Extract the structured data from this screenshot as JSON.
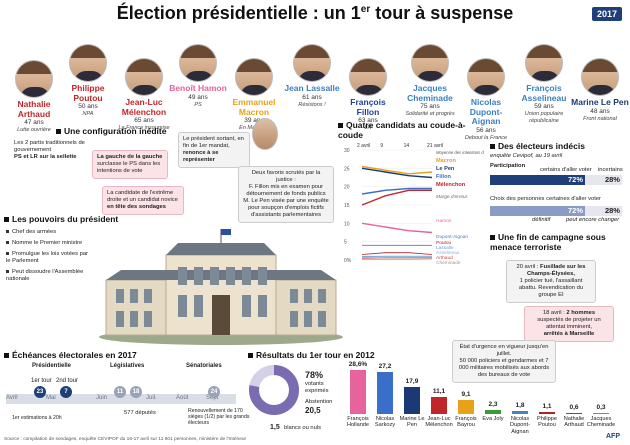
{
  "header": {
    "title_main": "Élection présidentielle : un 1",
    "title_sup": "er",
    "title_end": " tour à suspense",
    "logo": "2017"
  },
  "candidates": [
    {
      "name": "Nathalie Arthaud",
      "age": "47 ans",
      "party": "Lutte ouvrière",
      "color": "#c0262a"
    },
    {
      "name": "Philippe Poutou",
      "age": "50 ans",
      "party": "NPA",
      "color": "#c0262a"
    },
    {
      "name": "Jean-Luc Mélenchon",
      "age": "65 ans",
      "party": "La France insoumise",
      "color": "#c0262a"
    },
    {
      "name": "Benoît Hamon",
      "age": "49 ans",
      "party": "PS",
      "color": "#e6639b"
    },
    {
      "name": "Emmanuel Macron",
      "age": "39 ans",
      "party": "En Marche !",
      "color": "#e8a21a"
    },
    {
      "name": "Jean Lassalle",
      "age": "61 ans",
      "party": "Résistons !",
      "color": "#3a7fc1"
    },
    {
      "name": "François Fillon",
      "age": "63 ans",
      "party": "LR",
      "color": "#1f3f9a"
    },
    {
      "name": "Jacques Cheminade",
      "age": "75 ans",
      "party": "Solidarité et progrès",
      "color": "#3a7fc1"
    },
    {
      "name": "Nicolas Dupont-Aignan",
      "age": "56 ans",
      "party": "Debout la France",
      "color": "#3a7fc1"
    },
    {
      "name": "François Asselineau",
      "age": "59 ans",
      "party": "Union populaire républicaine",
      "color": "#3a7fc1"
    },
    {
      "name": "Marine Le Pen",
      "age": "48 ans",
      "party": "Front national",
      "color": "#1b3a75"
    }
  ],
  "config": {
    "heading": "Une configuration inédite",
    "note_left": "Les 2 partis traditionnels de gouvernement",
    "note_left_bold": "PS et LR sur la sellette",
    "note_ps": "La gauche de la gauche",
    "note_ps2": "surclasse le PS dans les intentions de vote",
    "note_fn": "La candidate de l'extrême droite et un candidat novice",
    "note_fn_bold": "en tête des sondages",
    "note_pres": "Le président sortant, en fin de 1er mandat,",
    "note_pres_bold": "renonce à se représenter",
    "note_justice_title": "Deux favoris scrutés par la justice :",
    "note_justice_1": "F. Fillon mis en examen pour détournement de fonds publics",
    "note_justice_2": "M. Le Pen visée par une enquête pour soupçon d'emplois fictifs d'assistants parlementaires"
  },
  "powers": {
    "heading": "Les pouvoirs du président",
    "items": [
      "Chef des armées",
      "Nomme le Premier ministre",
      "Promulgue les lois votées par le Parlement",
      "Peut dissoudre l'Assemblée nationale"
    ]
  },
  "race": {
    "heading": "Quatre candidats au coude-à-coude",
    "dates": [
      "2 avril",
      "9",
      "14",
      "21 avril"
    ],
    "legend_note": "Moyenne des intentions de vote",
    "y_ticks": [
      "30",
      "25",
      "20",
      "15",
      "10",
      "5",
      "0%"
    ],
    "series_labels": [
      "Macron",
      "Le Pen",
      "Fillon",
      "Mélenchon",
      "Marge d'erreur",
      "Hamon",
      "Dupont-Aignan",
      "Poutou",
      "Lassalle",
      "Asselineau",
      "Arthaud",
      "Cheminade"
    ]
  },
  "chart_data": {
    "type": "line",
    "x": [
      "2 avril",
      "9",
      "14",
      "21 avril"
    ],
    "ylim": [
      0,
      30
    ],
    "series": [
      {
        "name": "Macron",
        "values": [
          25.5,
          24.5,
          23.5,
          24
        ]
      },
      {
        "name": "Le Pen",
        "values": [
          25,
          24,
          23,
          22.5
        ]
      },
      {
        "name": "Fillon",
        "values": [
          18,
          19,
          19.5,
          19.5
        ]
      },
      {
        "name": "Mélenchon",
        "values": [
          15,
          17.5,
          19,
          19
        ]
      },
      {
        "name": "Hamon",
        "values": [
          10,
          9,
          8,
          7.5
        ]
      },
      {
        "name": "Dupont-Aignan",
        "values": [
          4,
          4,
          4,
          4
        ]
      },
      {
        "name": "Poutou",
        "values": [
          1.5,
          2,
          2,
          1.5
        ]
      },
      {
        "name": "Lassalle",
        "values": [
          1,
          1,
          1,
          1
        ]
      },
      {
        "name": "Asselineau",
        "values": [
          0.8,
          1,
          1,
          1
        ]
      },
      {
        "name": "Arthaud",
        "values": [
          0.5,
          0.6,
          0.6,
          0.6
        ]
      },
      {
        "name": "Cheminade",
        "values": [
          0.2,
          0.2,
          0.2,
          0.3
        ]
      }
    ],
    "colors": [
      "#e8a21a",
      "#1b3a75",
      "#3a6fc9",
      "#c0262a",
      "#e6639b",
      "#4f7dc0",
      "#b22222",
      "#6fa0d8",
      "#8bb2dd",
      "#d24a4a",
      "#999999"
    ]
  },
  "undecided": {
    "heading": "Des électeurs indécis",
    "sub": "enquête Cevipof, au 19 avril",
    "participation": "Participation",
    "sure_label": "certains d'aller voter",
    "unsure_label": "incertains",
    "sure_val": "72%",
    "unsure_val": "28%",
    "choice_label": "Choix des personnes certaines d'aller voter",
    "defin_val": "72%",
    "change_val": "28%",
    "defin_label": "définitif",
    "change_label": "peut encore changer"
  },
  "terror": {
    "heading": "Une fin de campagne sous menace terroriste",
    "box1_pre": "20 avril :",
    "box1_bold": "Fusillade sur les Champs-Élysées,",
    "box1_rest": "1 policier tué, l'assaillant abattu. Revendication du groupe EI",
    "box2_pre": "18 avril :",
    "box2_bold": "2 hommes",
    "box2_rest": "suspectés de projeter un attentat imminent,",
    "box2_bold2": "arrêtés à Marseille",
    "box3": "État d'urgence en vigueur jusqu'en juillet.",
    "box3b": "50 000 policiers et gendarmes et 7 000 militaires mobilisés aux abords des bureaux de vote"
  },
  "timeline": {
    "heading": "Échéances électorales en 2017",
    "presidentielle": "Présidentielle",
    "legislatives": "Législatives",
    "senatoriales": "Sénatoriales",
    "t1": "1er tour",
    "t2": "2nd tour",
    "months": [
      "Avril",
      "Mai",
      "Juin",
      "Juil.",
      "Août",
      "Sept"
    ],
    "d_apr": "23",
    "d_may": "7",
    "d_jun1": "11",
    "d_jun2": "18",
    "d_sep": "24",
    "estim": "1er estimations à 20h",
    "deputes": "577 députés",
    "senat": "Renouvellement de 170 sièges (1/2) par les grands électeurs"
  },
  "results2012": {
    "heading": "Résultats du 1er tour en 2012",
    "votants_pct": "78%",
    "votants_label": "votants exprimés",
    "abst_label": "Abstention",
    "abst_val": "20,5",
    "blancs": "1,5",
    "blancs_label": "blancs ou nuls",
    "candidates": [
      {
        "name": "François Hollande",
        "val": "28,6%",
        "color": "#e6639b"
      },
      {
        "name": "Nicolas Sarkozy",
        "val": "27,2",
        "color": "#3a6fc9"
      },
      {
        "name": "Marine Le Pen",
        "val": "17,9",
        "color": "#1b3a75"
      },
      {
        "name": "Jean-Luc Mélenchon",
        "val": "11,1",
        "color": "#c0262a"
      },
      {
        "name": "François Bayrou",
        "val": "9,1",
        "color": "#e8a21a"
      },
      {
        "name": "Eva Joly",
        "val": "2,3",
        "color": "#3a9a3a"
      },
      {
        "name": "Nicolas Dupont-Aignan",
        "val": "1,8",
        "color": "#4f7dc0"
      },
      {
        "name": "Philippe Poutou",
        "val": "1,1",
        "color": "#b22222"
      },
      {
        "name": "Nathalie Arthaud",
        "val": "0,6",
        "color": "#c0262a"
      },
      {
        "name": "Jacques Cheminade",
        "val": "0,3",
        "color": "#888888"
      }
    ],
    "values_num": [
      28.6,
      27.2,
      17.9,
      11.1,
      9.1,
      2.3,
      1.8,
      1.1,
      0.6,
      0.3
    ]
  },
  "footer": {
    "source": "Source : compilation de sondages, enquête CEVIPOF du 16-17 avril sur 11 601 personnes, ministère de l'Intérieur",
    "afp": "AFP"
  }
}
